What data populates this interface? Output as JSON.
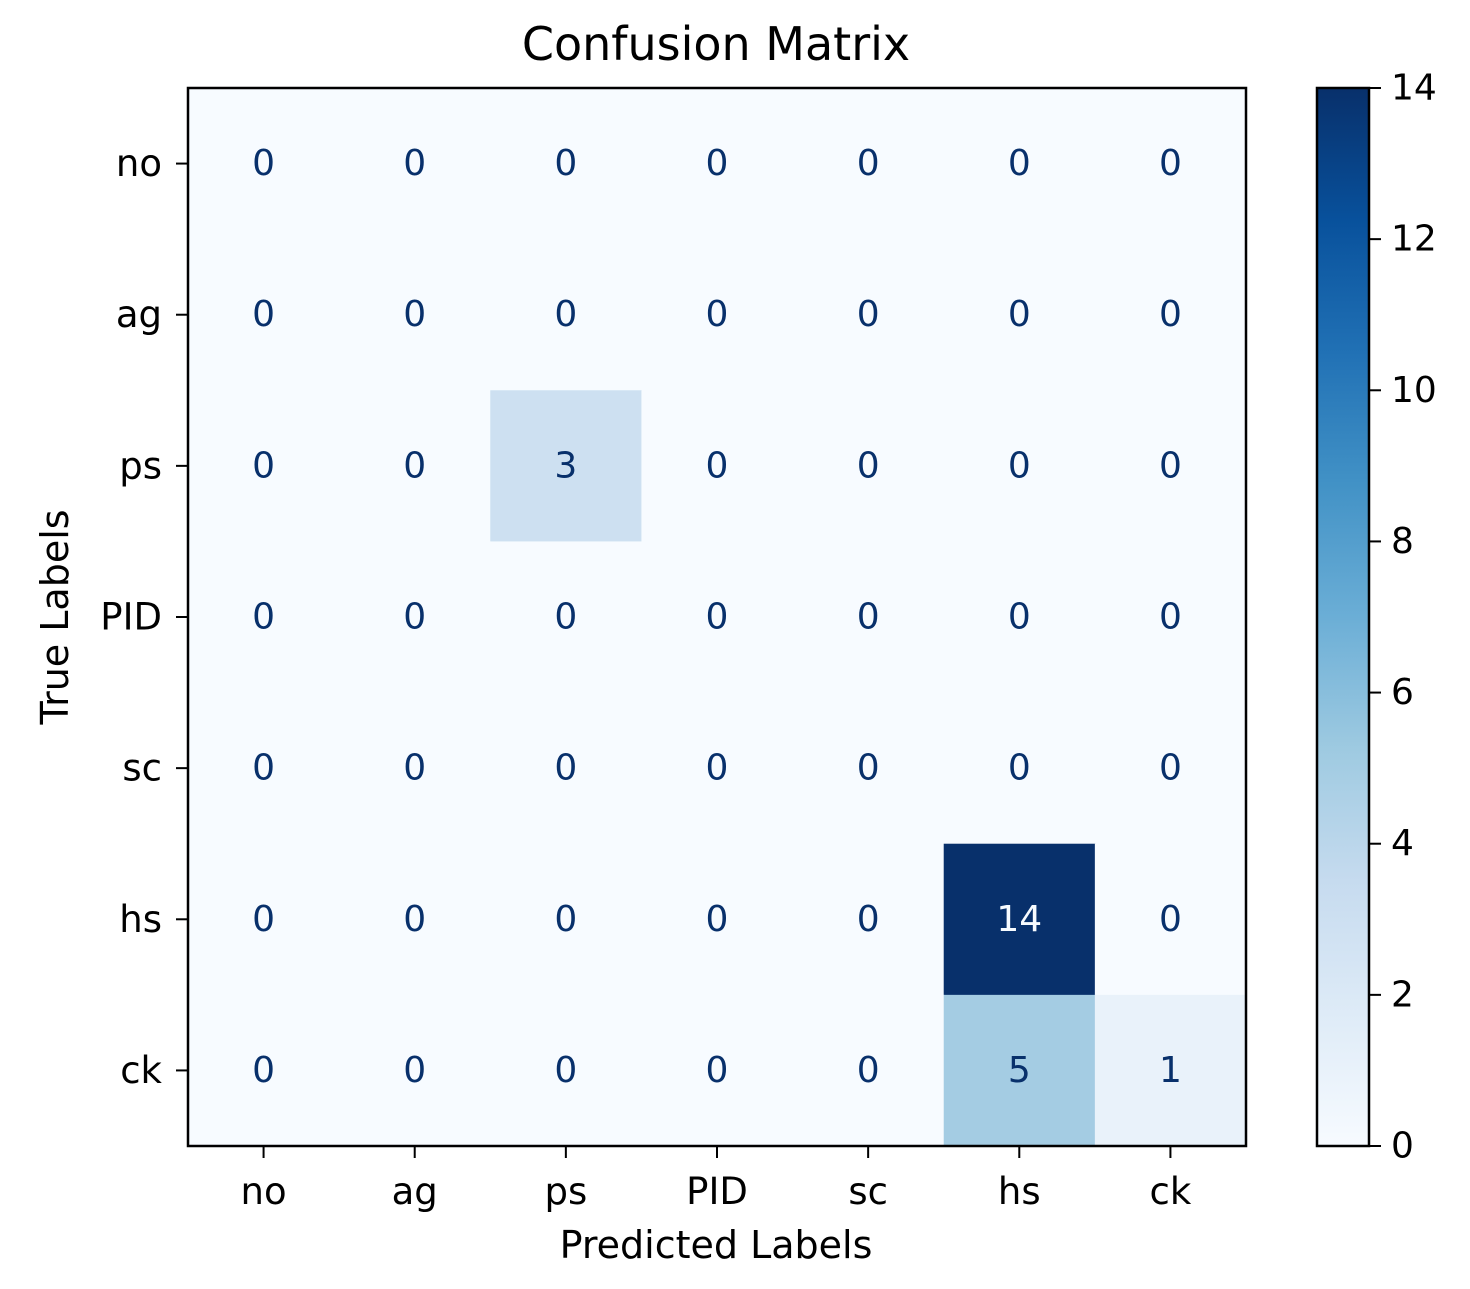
{
  "chart_data": {
    "type": "heatmap",
    "title": "Confusion Matrix",
    "xlabel": "Predicted Labels",
    "ylabel": "True Labels",
    "x_categories": [
      "no",
      "ag",
      "ps",
      "PID",
      "sc",
      "hs",
      "ck"
    ],
    "y_categories": [
      "no",
      "ag",
      "ps",
      "PID",
      "sc",
      "hs",
      "ck"
    ],
    "values": [
      [
        0,
        0,
        0,
        0,
        0,
        0,
        0
      ],
      [
        0,
        0,
        0,
        0,
        0,
        0,
        0
      ],
      [
        0,
        0,
        3,
        0,
        0,
        0,
        0
      ],
      [
        0,
        0,
        0,
        0,
        0,
        0,
        0
      ],
      [
        0,
        0,
        0,
        0,
        0,
        0,
        0
      ],
      [
        0,
        0,
        0,
        0,
        0,
        14,
        0
      ],
      [
        0,
        0,
        0,
        0,
        0,
        5,
        1
      ]
    ],
    "colormap": "Blues",
    "colorbar": {
      "min": 0,
      "max": 14,
      "ticks": [
        0,
        2,
        4,
        6,
        8,
        10,
        12,
        14
      ]
    }
  }
}
